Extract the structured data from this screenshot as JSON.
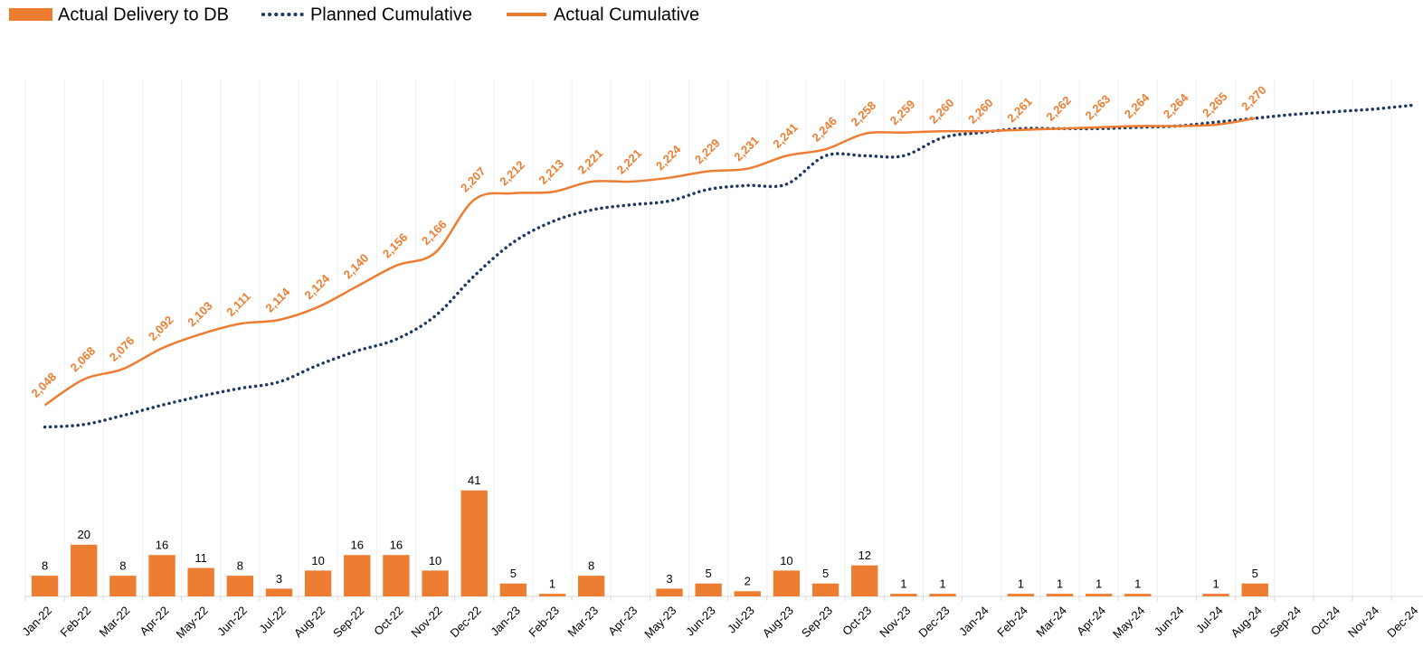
{
  "chart_data": {
    "type": "combo",
    "categories": [
      "Jan-22",
      "Feb-22",
      "Mar-22",
      "Apr-22",
      "May-22",
      "Jun-22",
      "Jul-22",
      "Aug-22",
      "Sep-22",
      "Oct-22",
      "Nov-22",
      "Dec-22",
      "Jan-23",
      "Feb-23",
      "Mar-23",
      "Apr-23",
      "May-23",
      "Jun-23",
      "Jul-23",
      "Aug-23",
      "Sep-23",
      "Oct-23",
      "Nov-23",
      "Dec-23",
      "Jan-24",
      "Feb-24",
      "Mar-24",
      "Apr-24",
      "May-24",
      "Jun-24",
      "Jul-24",
      "Aug-24",
      "Sep-24",
      "Oct-24",
      "Nov-24",
      "Dec-24"
    ],
    "ylim": [
      0,
      200
    ],
    "y2lim": [
      1900,
      2300
    ],
    "legend": "top-left",
    "series": [
      {
        "name": "Actual Delivery to DB",
        "type": "bar",
        "color": "#ed7d31",
        "values": [
          8,
          20,
          8,
          16,
          11,
          8,
          3,
          10,
          16,
          16,
          10,
          41,
          5,
          1,
          8,
          null,
          3,
          5,
          2,
          10,
          5,
          12,
          1,
          1,
          null,
          1,
          1,
          1,
          1,
          null,
          1,
          5,
          null,
          null,
          null,
          null
        ]
      },
      {
        "name": "Planned Cumulative",
        "type": "line",
        "style": "dotted",
        "axis": "y2",
        "color": "#1f3864",
        "values": [
          2031,
          2033,
          2040,
          2048,
          2055,
          2061,
          2066,
          2079,
          2090,
          2099,
          2117,
          2148,
          2174,
          2190,
          2199,
          2203,
          2206,
          2215,
          2218,
          2219,
          2241,
          2241,
          2241,
          2255,
          2259,
          2262,
          2262,
          2262,
          2263,
          2264,
          2267,
          2270,
          2273,
          2275,
          2277,
          2280
        ]
      },
      {
        "name": "Actual Cumulative",
        "type": "line",
        "style": "solid",
        "axis": "y2",
        "color": "#ed7d31",
        "values": [
          2048,
          2068,
          2076,
          2092,
          2103,
          2111,
          2114,
          2124,
          2140,
          2156,
          2166,
          2207,
          2212,
          2213,
          2221,
          2221,
          2224,
          2229,
          2231,
          2241,
          2246,
          2258,
          2259,
          2260,
          2260,
          2261,
          2262,
          2263,
          2264,
          2264,
          2265,
          2270,
          null,
          null,
          null,
          null
        ],
        "value_labels": [
          "2,048",
          "2,068",
          "2,076",
          "2,092",
          "2,103",
          "2,111",
          "2,114",
          "2,124",
          "2,140",
          "2,156",
          "2,166",
          "2,207",
          "2,212",
          "2,213",
          "2,221",
          "2,221",
          "2,224",
          "2,229",
          "2,231",
          "2,241",
          "2,246",
          "2,258",
          "2,259",
          "2,260",
          "2,260",
          "2,261",
          "2,262",
          "2,263",
          "2,264",
          "2,264",
          "2,265",
          "2,270",
          null,
          null,
          null,
          null
        ]
      }
    ]
  }
}
